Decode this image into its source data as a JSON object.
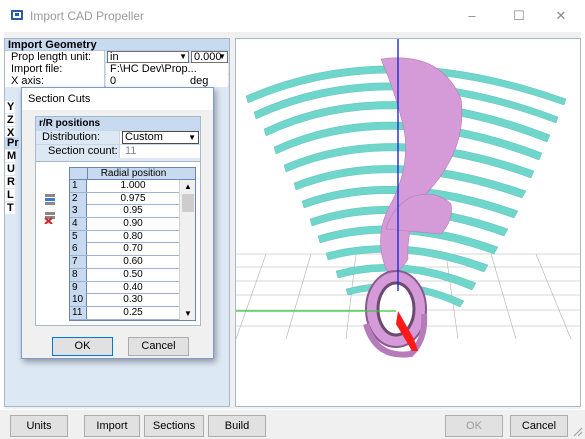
{
  "window": {
    "title": "Import CAD Propeller",
    "minimize_glyph": "–",
    "maximize_glyph": "☐",
    "close_glyph": "✕"
  },
  "properties": {
    "section_title": "Import Geometry",
    "rows": [
      {
        "key": "Prop length unit:",
        "value": "in",
        "extra": "0.000"
      },
      {
        "key": "Import file:",
        "value": "F:\\HC Dev\\Prop..."
      },
      {
        "key": "X axis:",
        "value": "0",
        "unit": "deg"
      }
    ],
    "fragments": [
      "Y",
      "Z",
      "X",
      "Pr",
      "M",
      "U",
      "R",
      "L",
      "T"
    ]
  },
  "dialog": {
    "title": "Section Cuts",
    "group_title": "r/R positions",
    "distribution_label": "Distribution:",
    "distribution_value": "Custom",
    "count_label": "Section count:",
    "count_value": "11",
    "table": {
      "header": "Radial position",
      "rows": [
        {
          "n": "1",
          "v": "1.000"
        },
        {
          "n": "2",
          "v": "0.975"
        },
        {
          "n": "3",
          "v": "0.95"
        },
        {
          "n": "4",
          "v": "0.90"
        },
        {
          "n": "5",
          "v": "0.80"
        },
        {
          "n": "6",
          "v": "0.70"
        },
        {
          "n": "7",
          "v": "0.60"
        },
        {
          "n": "8",
          "v": "0.50"
        },
        {
          "n": "9",
          "v": "0.40"
        },
        {
          "n": "10",
          "v": "0.30"
        },
        {
          "n": "11",
          "v": "0.25"
        }
      ]
    },
    "ok_label": "OK",
    "cancel_label": "Cancel"
  },
  "toolbar": {
    "units_label": "Units",
    "import_label": "Import",
    "sections_label": "Sections",
    "build_label": "Build",
    "ok_label": "OK",
    "cancel_label": "Cancel"
  },
  "colors": {
    "blade": "#6fd6cc",
    "hub": "#d59ad8",
    "highlight": "#ff1a1a",
    "axis_blue": "#1f2bd6",
    "axis_green": "#2ecc40",
    "grid": "#b0b0b0"
  },
  "icons": {
    "add_row": "add-row-icon",
    "delete_row": "delete-row-icon",
    "app": "propeller-app-icon"
  }
}
